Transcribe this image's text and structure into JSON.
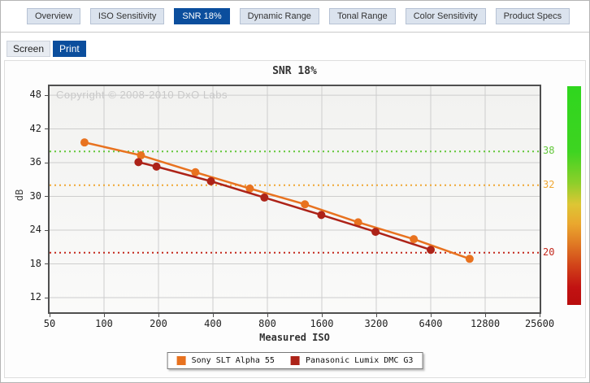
{
  "tabs": [
    {
      "label": "Overview",
      "active": false
    },
    {
      "label": "ISO Sensitivity",
      "active": false
    },
    {
      "label": "SNR 18%",
      "active": true
    },
    {
      "label": "Dynamic Range",
      "active": false
    },
    {
      "label": "Tonal Range",
      "active": false
    },
    {
      "label": "Color Sensitivity",
      "active": false
    },
    {
      "label": "Product Specs",
      "active": false
    }
  ],
  "view_tabs": [
    {
      "label": "Screen",
      "active": false
    },
    {
      "label": "Print",
      "active": true
    }
  ],
  "accent_color": "#0b4e9d",
  "chart_data": {
    "type": "line",
    "title": "SNR 18%",
    "watermark": "Copyright © 2008-2010 DxO Labs",
    "xlabel": "Measured ISO",
    "ylabel": "dB",
    "x_scale": "log2",
    "xlim": [
      50,
      25600
    ],
    "ylim": [
      9.4,
      49.6
    ],
    "x_ticks": [
      50,
      100,
      200,
      400,
      800,
      1600,
      3200,
      6400,
      12800,
      25600
    ],
    "y_ticks": [
      12,
      18,
      24,
      30,
      36,
      42,
      48
    ],
    "grid": true,
    "legend_position": "bottom",
    "colors": {
      "grid": "#cdcdcd",
      "plot_border": "#4f4f4f"
    },
    "thresholds": [
      {
        "value": 38,
        "color": "#62c73a"
      },
      {
        "value": 32,
        "color": "#efa733"
      },
      {
        "value": 20,
        "color": "#c3271b"
      }
    ],
    "series": [
      {
        "name": "Sony SLT Alpha 55",
        "color": "#e8721f",
        "x": [
          78,
          160,
          320,
          640,
          1290,
          2540,
          5160,
          10500
        ],
        "y": [
          39.6,
          37.3,
          34.3,
          31.4,
          28.6,
          25.4,
          22.4,
          18.9
        ]
      },
      {
        "name": "Panasonic Lumix DMC G3",
        "color": "#ad2318",
        "x": [
          155,
          195,
          390,
          770,
          1590,
          3170,
          6400
        ],
        "y": [
          36.1,
          35.3,
          32.7,
          29.8,
          26.7,
          23.7,
          20.5
        ]
      }
    ],
    "gradient_stops": [
      "#2fd61e 0%",
      "#3ed421 30%",
      "#8ccf2a 44%",
      "#ddc634 54%",
      "#eaa72e 63%",
      "#e07a24 72%",
      "#d14319 82%",
      "#c21212 92%",
      "#b90d0d 100%"
    ]
  }
}
